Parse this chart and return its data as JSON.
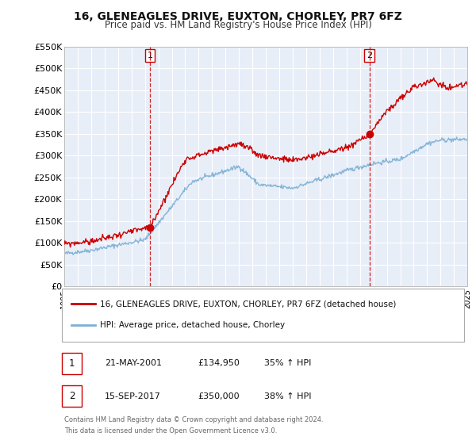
{
  "title": "16, GLENEAGLES DRIVE, EUXTON, CHORLEY, PR7 6FZ",
  "subtitle": "Price paid vs. HM Land Registry's House Price Index (HPI)",
  "background_color": "#ffffff",
  "plot_bg_color": "#e8eef8",
  "grid_color": "#ffffff",
  "legend_label_red": "16, GLENEAGLES DRIVE, EUXTON, CHORLEY, PR7 6FZ (detached house)",
  "legend_label_blue": "HPI: Average price, detached house, Chorley",
  "transaction1_label": "1",
  "transaction1_date": "21-MAY-2001",
  "transaction1_price": "£134,950",
  "transaction1_hpi": "35% ↑ HPI",
  "transaction2_label": "2",
  "transaction2_date": "15-SEP-2017",
  "transaction2_price": "£350,000",
  "transaction2_hpi": "38% ↑ HPI",
  "footnote1": "Contains HM Land Registry data © Crown copyright and database right 2024.",
  "footnote2": "This data is licensed under the Open Government Licence v3.0.",
  "ylim": [
    0,
    550000
  ],
  "yticks": [
    0,
    50000,
    100000,
    150000,
    200000,
    250000,
    300000,
    350000,
    400000,
    450000,
    500000,
    550000
  ],
  "ytick_labels": [
    "£0",
    "£50K",
    "£100K",
    "£150K",
    "£200K",
    "£250K",
    "£300K",
    "£350K",
    "£400K",
    "£450K",
    "£500K",
    "£550K"
  ],
  "red_color": "#cc0000",
  "blue_color": "#7bafd4",
  "marker_color": "#cc0000",
  "vline_color": "#cc0000",
  "transaction1_x": 2001.38,
  "transaction1_y": 134950,
  "transaction2_x": 2017.71,
  "transaction2_y": 350000,
  "xmin": 1995,
  "xmax": 2025
}
